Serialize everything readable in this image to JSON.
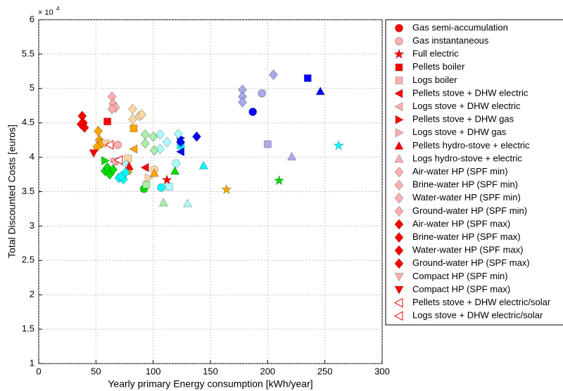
{
  "chart_data": {
    "type": "scatter",
    "xlabel": "Yearly primary Energy consumption [kWh/year]",
    "ylabel": "Total Discounted Costs [euros]",
    "y_scale_base": "× 10",
    "y_scale_exponent": "4",
    "xlim": [
      0,
      300
    ],
    "xticks": [
      0,
      50,
      100,
      150,
      200,
      250,
      300
    ],
    "ylim": [
      1,
      6
    ],
    "yticks": [
      1,
      1.5,
      2,
      2.5,
      3,
      3.5,
      4,
      4.5,
      5,
      5.5,
      6
    ],
    "grid": true,
    "legend": "outside-right",
    "series": [
      {
        "name": "Gas semi-accumulation",
        "marker": "circle",
        "color": "#ff0000",
        "x": [
          187,
          107,
          78,
          92
        ],
        "values": [
          4.66,
          3.56,
          3.8,
          3.54
        ],
        "colors": [
          "#0000ff",
          "#00ffff",
          "#ffa500",
          "#00dd00"
        ]
      },
      {
        "name": "Gas instantaneous",
        "marker": "circle",
        "color": "#ffb0b0",
        "x": [
          195,
          120,
          101,
          69
        ],
        "values": [
          4.93,
          3.91,
          3.82,
          4.18
        ],
        "colors": [
          "#aaaaee",
          "#aaffff",
          "#ffd8a0",
          "#ffb0b0"
        ]
      },
      {
        "name": "Full electric",
        "marker": "star",
        "color": "#ff0000",
        "x": [
          262,
          210,
          164,
          112
        ],
        "values": [
          4.17,
          3.66,
          3.53,
          3.67
        ],
        "colors": [
          "#00ffff",
          "#00dd00",
          "#ffa500",
          "#ff0000"
        ]
      },
      {
        "name": "Pellets boiler",
        "marker": "square",
        "color": "#ff0000",
        "x": [
          235,
          60,
          83,
          124
        ],
        "values": [
          5.15,
          4.52,
          4.42,
          4.17
        ],
        "colors": [
          "#0000ff",
          "#ff0000",
          "#ffa500",
          "#00ffff"
        ]
      },
      {
        "name": "Logs boiler",
        "marker": "square",
        "color": "#ffb0b0",
        "x": [
          200,
          114,
          78,
          94
        ],
        "values": [
          4.19,
          3.57,
          3.98,
          3.6
        ],
        "colors": [
          "#aaaaee",
          "#aaffff",
          "#ffd8a0",
          "#aaeeaa"
        ]
      },
      {
        "name": "Pellets stove + DHW electric",
        "marker": "triangle-left",
        "color": "#ff0000",
        "x": [
          93,
          124,
          83
        ],
        "values": [
          3.85,
          4.08,
          4.12
        ],
        "colors": [
          "#ff0000",
          "#0000ff",
          "#ffa500"
        ]
      },
      {
        "name": "Logs stove + DHW electric",
        "marker": "triangle-left",
        "color": "#ffb0b0",
        "x": [
          66,
          75
        ],
        "values": [
          3.94,
          3.9
        ],
        "colors": [
          "#ffb0b0",
          "#aaffff"
        ]
      },
      {
        "name": "Pellets stove + DHW gas",
        "marker": "triangle-right",
        "color": "#ff0000",
        "x": [
          124,
          58
        ],
        "values": [
          4.28,
          3.95
        ],
        "colors": [
          "#0000ff",
          "#00dd00"
        ]
      },
      {
        "name": "Logs stove + DHW gas",
        "marker": "triangle-right",
        "color": "#ffb0b0",
        "x": [
          68,
          96
        ],
        "values": [
          3.93,
          3.7
        ],
        "colors": [
          "#ffb0b0",
          "#ffd8a0"
        ]
      },
      {
        "name": "Pellets hydro-stove + electric",
        "marker": "triangle-up",
        "color": "#ff0000",
        "x": [
          246,
          144,
          119,
          79,
          101
        ],
        "values": [
          4.96,
          3.88,
          3.8,
          3.87,
          3.77
        ],
        "colors": [
          "#0000ff",
          "#00ffff",
          "#00dd00",
          "#ff0000",
          "#ffa500"
        ]
      },
      {
        "name": "Logs hydro-stove + electric",
        "marker": "triangle-up",
        "color": "#ffb0b0",
        "x": [
          221,
          130,
          109
        ],
        "values": [
          4.01,
          3.33,
          3.34
        ],
        "colors": [
          "#aaaaee",
          "#aaffff",
          "#aaeeaa"
        ]
      },
      {
        "name": "Air-water HP (SPF min)",
        "marker": "diamond",
        "color": "#ffb0b0",
        "x": [
          178,
          106,
          93,
          82,
          64
        ],
        "values": [
          4.98,
          4.33,
          4.33,
          4.7,
          4.88
        ],
        "colors": [
          "#aaaaee",
          "#aaffff",
          "#aaeeaa",
          "#ffd8a0",
          "#ffb0b0"
        ]
      },
      {
        "name": "Brine-water HP (SPF min)",
        "marker": "diamond",
        "color": "#ffb0b0",
        "x": [
          178,
          112,
          100,
          88,
          65
        ],
        "values": [
          4.88,
          4.22,
          4.3,
          4.6,
          4.78
        ],
        "colors": [
          "#aaaaee",
          "#aaffff",
          "#aaeeaa",
          "#ffd8a0",
          "#ffb0b0"
        ]
      },
      {
        "name": "Water-water HP (SPF min)",
        "marker": "diamond",
        "color": "#ffb0b0",
        "x": [
          178,
          106,
          93,
          82,
          67
        ],
        "values": [
          4.8,
          4.12,
          4.2,
          4.55,
          4.72
        ],
        "colors": [
          "#aaaaee",
          "#aaffff",
          "#aaeeaa",
          "#ffd8a0",
          "#ffb0b0"
        ]
      },
      {
        "name": "Ground-water HP (SPF min)",
        "marker": "diamond",
        "color": "#ffb0b0",
        "x": [
          205,
          122,
          101,
          90,
          64
        ],
        "values": [
          5.2,
          4.34,
          4.1,
          4.62,
          4.7
        ],
        "colors": [
          "#aaaaee",
          "#aaffff",
          "#aaeeaa",
          "#ffd8a0",
          "#ffb0b0"
        ]
      },
      {
        "name": "Air-water HP (SPF max)",
        "marker": "diamond",
        "color": "#ff0000",
        "x": [
          138,
          38,
          52,
          58,
          70
        ],
        "values": [
          4.3,
          4.6,
          4.38,
          3.8,
          3.7
        ],
        "colors": [
          "#0000ff",
          "#ff0000",
          "#ffa500",
          "#00dd00",
          "#00ffff"
        ]
      },
      {
        "name": "Brine-water HP (SPF max)",
        "marker": "diamond",
        "color": "#ff0000",
        "x": [
          124,
          39,
          53,
          62,
          74
        ],
        "values": [
          4.22,
          4.5,
          4.25,
          3.75,
          3.68
        ],
        "colors": [
          "#0000ff",
          "#ff0000",
          "#ffa500",
          "#00dd00",
          "#00ffff"
        ]
      },
      {
        "name": "Water-water HP (SPF max)",
        "marker": "diamond",
        "color": "#ff0000",
        "x": [
          37,
          55,
          60,
          72
        ],
        "values": [
          4.48,
          4.2,
          3.85,
          3.72
        ],
        "colors": [
          "#ff0000",
          "#ffa500",
          "#00dd00",
          "#00ffff"
        ]
      },
      {
        "name": "Ground-water HP (SPF max)",
        "marker": "diamond",
        "color": "#ff0000",
        "x": [
          40,
          51,
          65,
          76
        ],
        "values": [
          4.43,
          4.15,
          3.82,
          3.78
        ],
        "colors": [
          "#ff0000",
          "#ffa500",
          "#00dd00",
          "#00ffff"
        ]
      },
      {
        "name": "Compact HP (SPF min)",
        "marker": "triangle-down",
        "color": "#ffb0b0",
        "x": [
          58,
          66
        ],
        "values": [
          4.2,
          3.93
        ],
        "colors": [
          "#ffd8a0",
          "#ffb0b0"
        ]
      },
      {
        "name": "Compact HP (SPF max)",
        "marker": "triangle-down",
        "color": "#ff0000",
        "x": [
          48
        ],
        "values": [
          4.06
        ],
        "colors": [
          "#ff0000"
        ]
      },
      {
        "name": "Pellets stove + DHW electric/solar",
        "marker": "triangle-left",
        "color": "#ffffff",
        "edge": "#ff0000",
        "x": [
          62
        ],
        "values": [
          4.18
        ],
        "colors": [
          "#ffffff"
        ]
      },
      {
        "name": "Logs stove + DHW electric/solar",
        "marker": "triangle-left",
        "color": "#ffffff",
        "edge": "#ff0000",
        "x": [
          70
        ],
        "values": [
          3.96
        ],
        "colors": [
          "#ffffff"
        ]
      }
    ]
  }
}
